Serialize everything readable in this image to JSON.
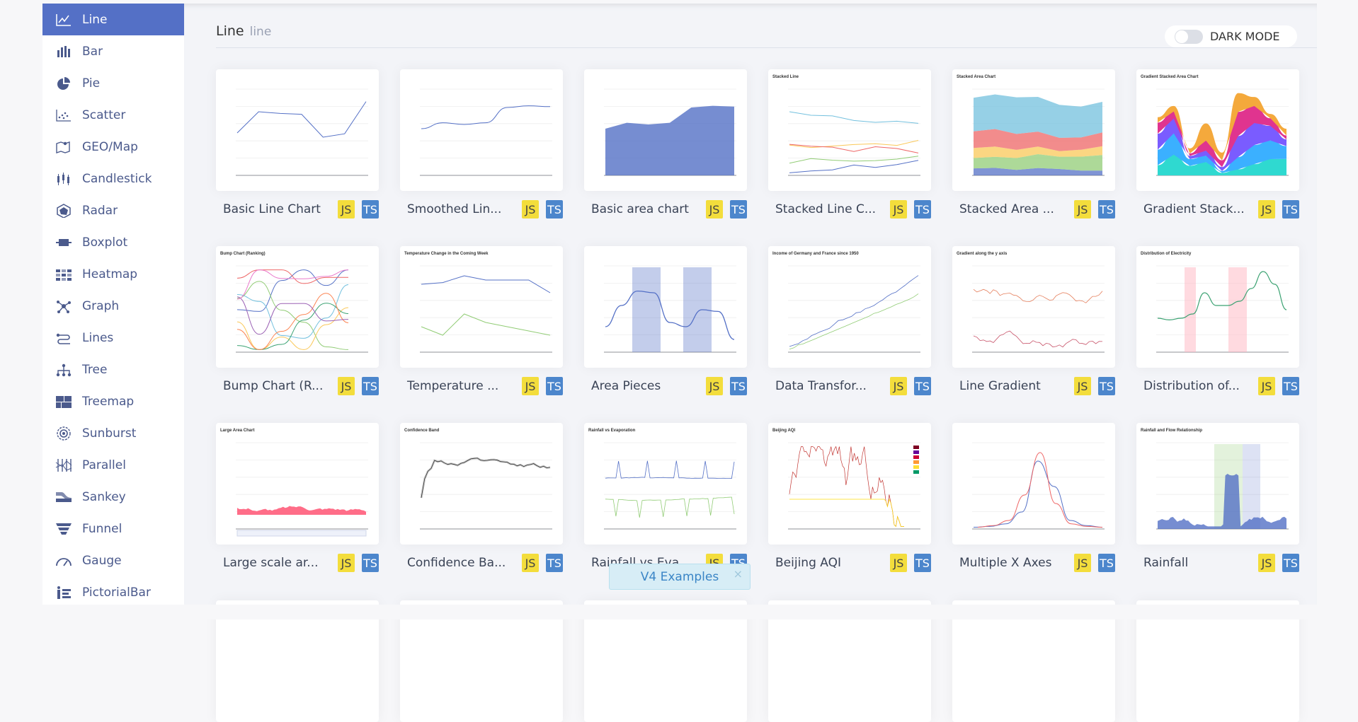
{
  "sidebar": {
    "items": [
      {
        "label": "Line",
        "icon": "line-chart-icon",
        "active": true
      },
      {
        "label": "Bar",
        "icon": "bar-chart-icon"
      },
      {
        "label": "Pie",
        "icon": "pie-chart-icon"
      },
      {
        "label": "Scatter",
        "icon": "scatter-chart-icon"
      },
      {
        "label": "GEO/Map",
        "icon": "map-icon"
      },
      {
        "label": "Candlestick",
        "icon": "candlestick-icon"
      },
      {
        "label": "Radar",
        "icon": "radar-icon"
      },
      {
        "label": "Boxplot",
        "icon": "boxplot-icon"
      },
      {
        "label": "Heatmap",
        "icon": "heatmap-icon"
      },
      {
        "label": "Graph",
        "icon": "graph-icon"
      },
      {
        "label": "Lines",
        "icon": "lines-icon"
      },
      {
        "label": "Tree",
        "icon": "tree-icon"
      },
      {
        "label": "Treemap",
        "icon": "treemap-icon"
      },
      {
        "label": "Sunburst",
        "icon": "sunburst-icon"
      },
      {
        "label": "Parallel",
        "icon": "parallel-icon"
      },
      {
        "label": "Sankey",
        "icon": "sankey-icon"
      },
      {
        "label": "Funnel",
        "icon": "funnel-icon"
      },
      {
        "label": "Gauge",
        "icon": "gauge-icon"
      },
      {
        "label": "PictorialBar",
        "icon": "pictorialbar-icon"
      }
    ]
  },
  "header": {
    "title": "Line",
    "subtitle": "line",
    "dark_mode_label": "DARK MODE",
    "dark_mode_on": false
  },
  "badges": {
    "js": "JS",
    "ts": "TS"
  },
  "colors": {
    "accent": "#5470c6",
    "js": "#f3dd3c",
    "ts": "#4c86cc"
  },
  "cards": [
    {
      "title": "Basic Line Chart",
      "thumb": "line",
      "thumb_title": ""
    },
    {
      "title": "Smoothed Lin...",
      "thumb": "smooth",
      "thumb_title": ""
    },
    {
      "title": "Basic area chart",
      "thumb": "area",
      "thumb_title": ""
    },
    {
      "title": "Stacked Line C...",
      "thumb": "stacked-line",
      "thumb_title": "Stacked Line"
    },
    {
      "title": "Stacked Area ...",
      "thumb": "stacked-area",
      "thumb_title": "Stacked Area Chart"
    },
    {
      "title": "Gradient Stack...",
      "thumb": "gradient-stack",
      "thumb_title": "Gradient Stacked Area Chart"
    },
    {
      "title": "Bump Chart (R...",
      "thumb": "bump",
      "thumb_title": "Bump Chart (Ranking)"
    },
    {
      "title": "Temperature ...",
      "thumb": "temperature",
      "thumb_title": "Temperature Change in the Coming Week"
    },
    {
      "title": "Area Pieces",
      "thumb": "area-pieces",
      "thumb_title": ""
    },
    {
      "title": "Data Transfor...",
      "thumb": "data-transform",
      "thumb_title": "Income of Germany and France since 1950"
    },
    {
      "title": "Line Gradient",
      "thumb": "line-gradient",
      "thumb_title": "Gradient along the y axis"
    },
    {
      "title": "Distribution of...",
      "thumb": "distribution",
      "thumb_title": "Distribution of Electricity"
    },
    {
      "title": "Large scale ar...",
      "thumb": "large-area",
      "thumb_title": "Large Area Chart"
    },
    {
      "title": "Confidence Ba...",
      "thumb": "confidence",
      "thumb_title": "Confidence Band"
    },
    {
      "title": "Rainfall vs Eva...",
      "thumb": "rainfall-evap",
      "thumb_title": "Rainfall vs Evaporation"
    },
    {
      "title": "Beijing AQI",
      "thumb": "aqi",
      "thumb_title": "Beijing AQI"
    },
    {
      "title": "Multiple X Axes",
      "thumb": "multi-x",
      "thumb_title": ""
    },
    {
      "title": "Rainfall",
      "thumb": "rainfall",
      "thumb_title": "Rainfall and Flow Relationship"
    }
  ],
  "toast": {
    "label": "V4 Examples",
    "close": "×"
  }
}
